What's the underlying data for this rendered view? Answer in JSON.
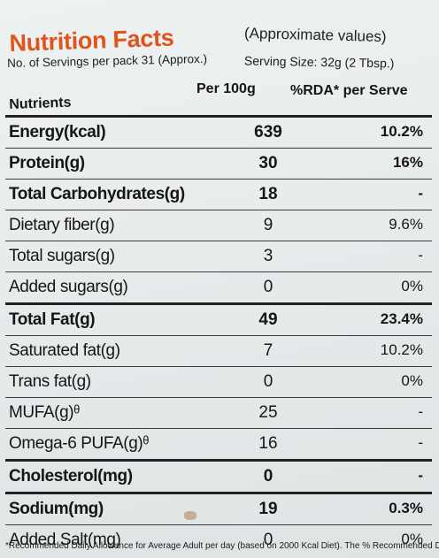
{
  "label": {
    "title": "Nutrition Facts",
    "approx_note": "(Approximate values)",
    "servings_per_pack": "No. of Servings per pack 31 (Approx.)",
    "serving_size": "Serving Size: 32g (2 Tbsp.)",
    "headers": {
      "nutrients": "Nutrients",
      "per_100g": "Per 100g",
      "rda": "%RDA* per Serve"
    },
    "rows": [
      {
        "name": "Energy(kcal)",
        "per_100g": "639",
        "rda": "10.2%"
      },
      {
        "name": "Protein(g)",
        "per_100g": "30",
        "rda": "16%"
      },
      {
        "name": "Total Carbohydrates(g)",
        "per_100g": "18",
        "rda": "-"
      },
      {
        "name": "Dietary fiber(g)",
        "per_100g": "9",
        "rda": "9.6%"
      },
      {
        "name": "Total sugars(g)",
        "per_100g": "3",
        "rda": "-"
      },
      {
        "name": "Added sugars(g)",
        "per_100g": "0",
        "rda": "0%"
      },
      {
        "name": "Total Fat(g)",
        "per_100g": "49",
        "rda": "23.4%"
      },
      {
        "name": "Saturated fat(g)",
        "per_100g": "7",
        "rda": "10.2%"
      },
      {
        "name": "Trans fat(g)",
        "per_100g": "0",
        "rda": "0%"
      },
      {
        "name": "MUFA(g)ᶿ",
        "per_100g": "25",
        "rda": "-"
      },
      {
        "name": "Omega-6 PUFA(g)ᶿ",
        "per_100g": "16",
        "rda": "-"
      },
      {
        "name": "Cholesterol(mg)",
        "per_100g": "0",
        "rda": "-"
      },
      {
        "name": "Sodium(mg)",
        "per_100g": "19",
        "rda": "0.3%"
      },
      {
        "name": "Added Salt(mg)",
        "per_100g": "0",
        "rda": "0%"
      }
    ],
    "footnote": "*Recommended Daily Allowance for Average Adult per day (based on 2000 Kcal Diet). The % Recommended Daily"
  }
}
